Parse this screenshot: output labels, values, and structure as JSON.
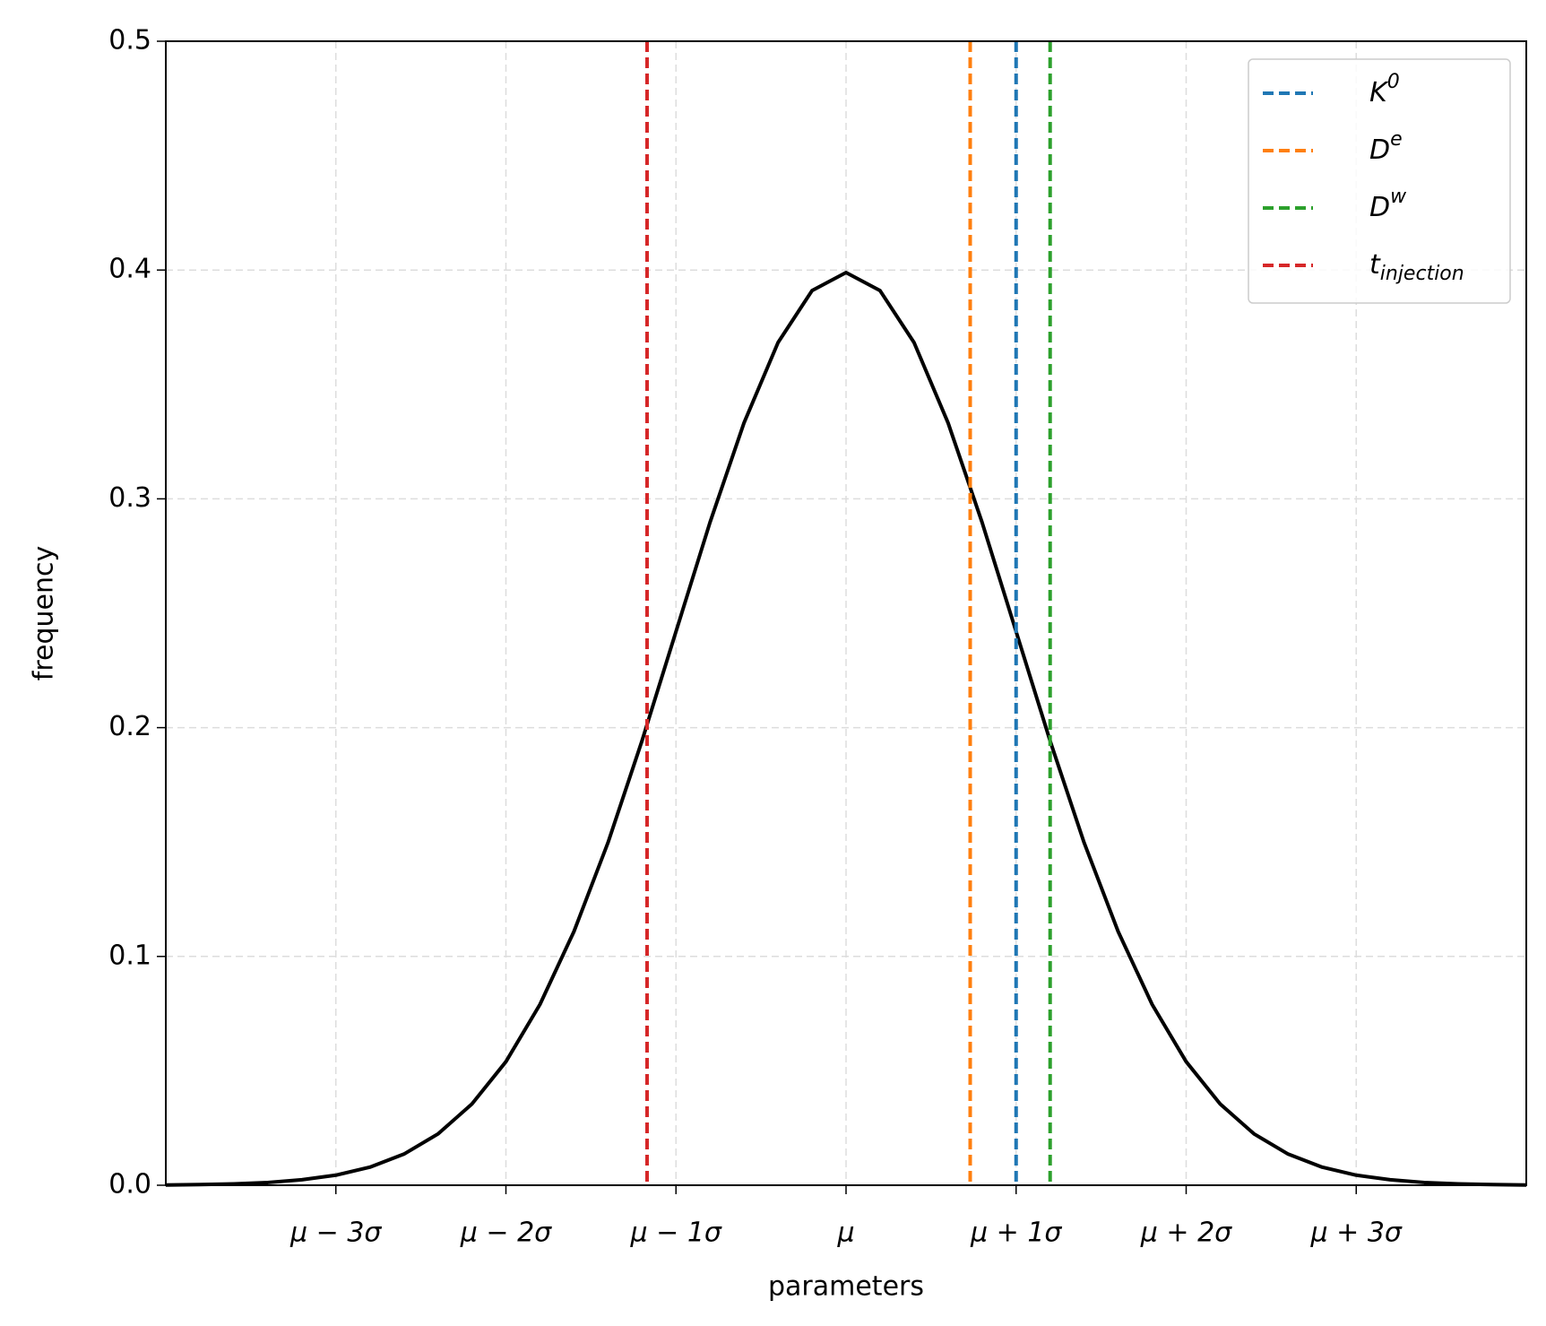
{
  "chart_data": {
    "type": "line",
    "xlabel": "parameters",
    "ylabel": "frequency",
    "x": [
      -4,
      -3.8,
      -3.6,
      -3.4,
      -3.2,
      -3,
      -2.8,
      -2.6,
      -2.4,
      -2.2,
      -2,
      -1.8,
      -1.6,
      -1.4,
      -1.2,
      -1,
      -0.8,
      -0.6,
      -0.4,
      -0.2,
      0,
      0.2,
      0.4,
      0.6,
      0.8,
      1,
      1.2,
      1.4,
      1.6,
      1.8,
      2,
      2.2,
      2.4,
      2.6,
      2.8,
      3,
      3.2,
      3.4,
      3.6,
      3.8,
      4
    ],
    "series": [
      {
        "color": "#000000",
        "values": [
          0.0001,
          0.0003,
          0.0006,
          0.0012,
          0.0024,
          0.0044,
          0.0079,
          0.0136,
          0.0224,
          0.0355,
          0.054,
          0.079,
          0.1109,
          0.1497,
          0.1942,
          0.242,
          0.2897,
          0.3332,
          0.3683,
          0.391,
          0.3989,
          0.391,
          0.3683,
          0.3332,
          0.2897,
          0.242,
          0.1942,
          0.1497,
          0.1109,
          0.079,
          0.054,
          0.0355,
          0.0224,
          0.0136,
          0.0079,
          0.0044,
          0.0024,
          0.0012,
          0.0006,
          0.0003,
          0.0001
        ]
      }
    ],
    "vlines": [
      {
        "name": "K^0",
        "color": "#1f77b4",
        "x": 1.0
      },
      {
        "name": "D^e",
        "color": "#ff7f0e",
        "x": 0.73
      },
      {
        "name": "D^w",
        "color": "#2ca02c",
        "x": 1.2
      },
      {
        "name": "t_injection",
        "color": "#d62728",
        "x": -1.17
      }
    ],
    "xlim": [
      -4,
      4
    ],
    "xticks": [
      {
        "value": -3,
        "label": "μ − 3σ"
      },
      {
        "value": -2,
        "label": "μ − 2σ"
      },
      {
        "value": -1,
        "label": "μ − 1σ"
      },
      {
        "value": 0,
        "label": "μ"
      },
      {
        "value": 1,
        "label": "μ + 1σ"
      },
      {
        "value": 2,
        "label": "μ + 2σ"
      },
      {
        "value": 3,
        "label": "μ + 3σ"
      }
    ],
    "ylim": [
      0,
      0.5
    ],
    "yticks": [
      {
        "value": 0,
        "label": "0.0"
      },
      0.1,
      0.2,
      0.3,
      0.4,
      0.5
    ],
    "grid": true,
    "legend": "upper right"
  }
}
